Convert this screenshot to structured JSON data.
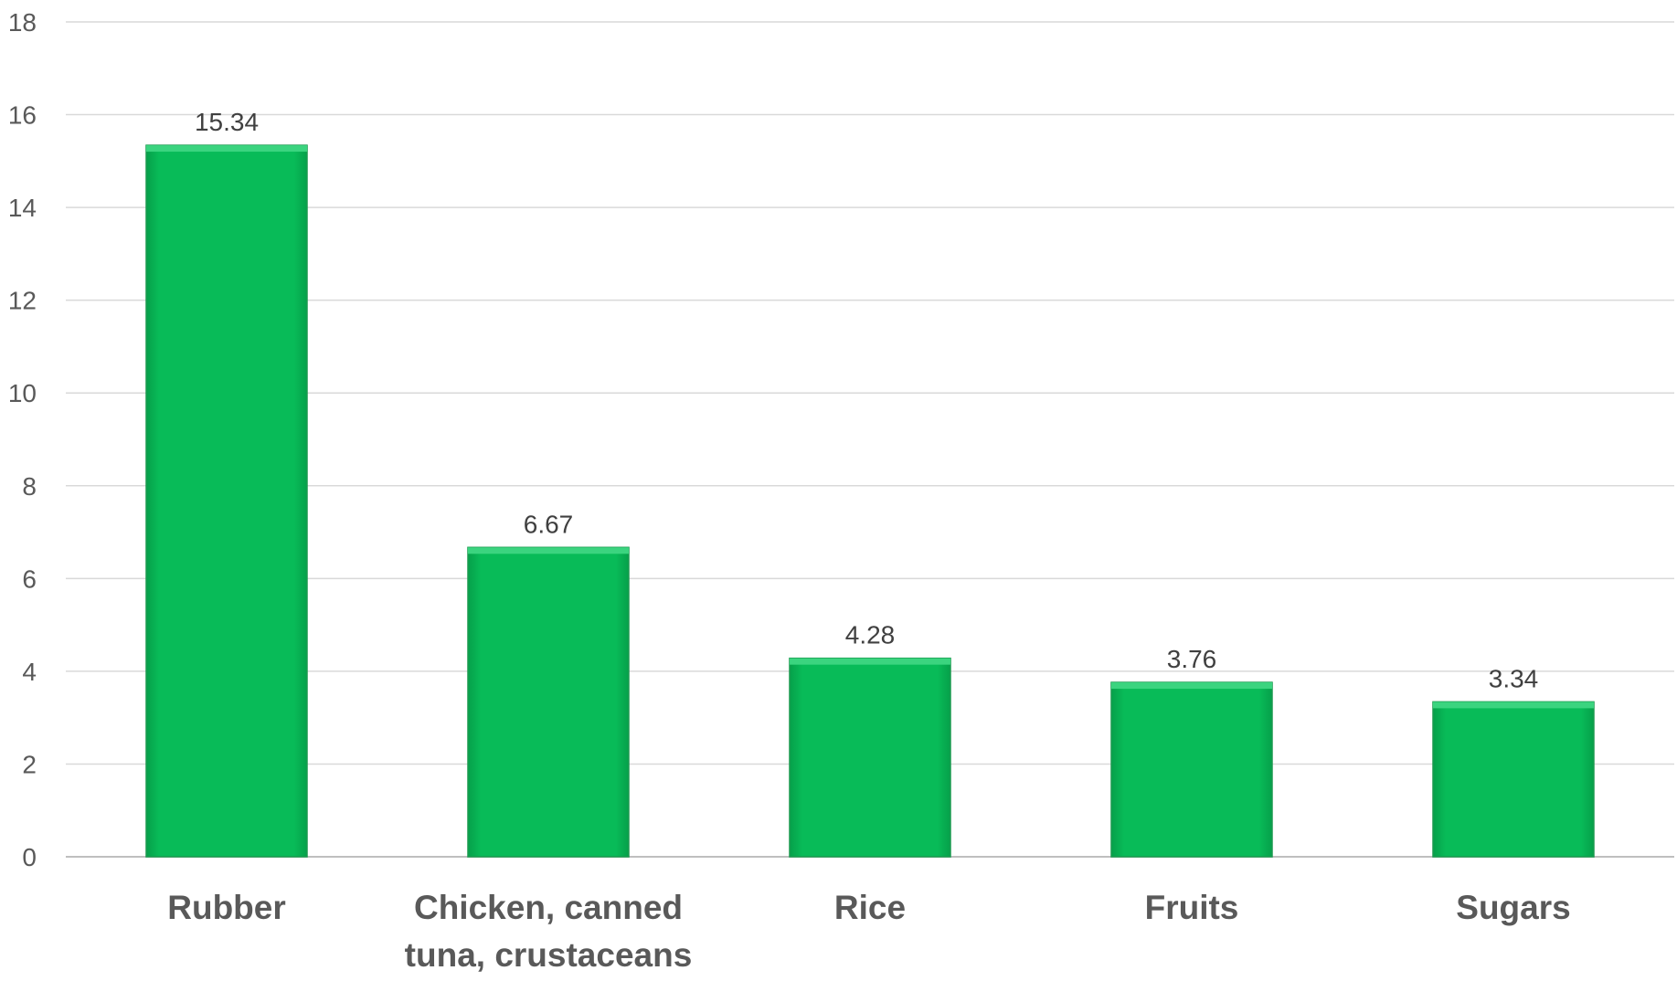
{
  "chart_data": {
    "type": "bar",
    "title": "",
    "xlabel": "",
    "ylabel": "",
    "categories": [
      [
        "Rubber"
      ],
      [
        "Chicken, canned",
        "tuna, crustaceans"
      ],
      [
        "Rice"
      ],
      [
        "Fruits"
      ],
      [
        "Sugars"
      ]
    ],
    "values": [
      15.34,
      6.67,
      4.28,
      3.76,
      3.34
    ],
    "data_labels": [
      "15.34",
      "6.67",
      "4.28",
      "3.76",
      "3.34"
    ],
    "ylim": [
      0,
      18
    ],
    "yticks": [
      "0",
      "2",
      "4",
      "6",
      "8",
      "10",
      "12",
      "14",
      "16",
      "18"
    ],
    "grid": true,
    "legend": "none",
    "bar_color": "#08bb58",
    "bar_top_color": "#3bd47f"
  }
}
